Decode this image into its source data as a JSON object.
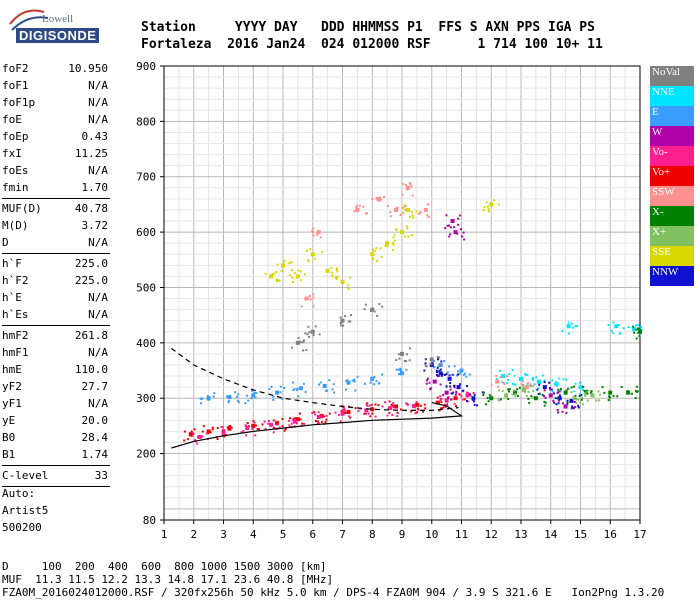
{
  "logo": {
    "top": "Lowell",
    "bottom": "DIGISONDE"
  },
  "header": {
    "line1": "Station     YYYY DAY   DDD HHMMSS P1  FFS S AXN PPS IGA PS",
    "line2": "Fortaleza  2016 Jan24  024 012000 RSF      1 714 100 10+ 11"
  },
  "params": [
    [
      {
        "name": "foF2",
        "value": "10.950"
      },
      {
        "name": "foF1",
        "value": "N/A"
      },
      {
        "name": "foF1p",
        "value": "N/A"
      },
      {
        "name": "foE",
        "value": "N/A"
      },
      {
        "name": "foEp",
        "value": "0.43"
      },
      {
        "name": "fxI",
        "value": "11.25"
      },
      {
        "name": "foEs",
        "value": "N/A"
      },
      {
        "name": "fmin",
        "value": "1.70"
      }
    ],
    [
      {
        "name": "MUF(D)",
        "value": "40.78"
      },
      {
        "name": "M(D)",
        "value": "3.72"
      },
      {
        "name": "D",
        "value": "N/A"
      }
    ],
    [
      {
        "name": "h`F",
        "value": "225.0"
      },
      {
        "name": "h`F2",
        "value": "225.0"
      },
      {
        "name": "h`E",
        "value": "N/A"
      },
      {
        "name": "h`Es",
        "value": "N/A"
      }
    ],
    [
      {
        "name": "hmF2",
        "value": "261.8"
      },
      {
        "name": "hmF1",
        "value": "N/A"
      },
      {
        "name": "hmE",
        "value": "110.0"
      },
      {
        "name": "yF2",
        "value": "27.7"
      },
      {
        "name": "yF1",
        "value": "N/A"
      },
      {
        "name": "yE",
        "value": "20.0"
      },
      {
        "name": "B0",
        "value": "28.4"
      },
      {
        "name": "B1",
        "value": "1.74"
      }
    ],
    [
      {
        "name": "C-level",
        "value": "33"
      }
    ]
  ],
  "auto": {
    "label": "Auto:",
    "artist": "Artist5",
    "version": "500200"
  },
  "legend": [
    {
      "label": "NoVal",
      "color": "#808080"
    },
    {
      "label": "NNE",
      "color": "#00e5ff"
    },
    {
      "label": "E",
      "color": "#3b9cff"
    },
    {
      "label": "W",
      "color": "#b000a8"
    },
    {
      "label": "Vo-",
      "color": "#ff2090"
    },
    {
      "label": "Vo+",
      "color": "#ee0000"
    },
    {
      "label": "SSW",
      "color": "#ff9090"
    },
    {
      "label": "X-",
      "color": "#008000"
    },
    {
      "label": "X+",
      "color": "#80c060"
    },
    {
      "label": "SSE",
      "color": "#d8d800"
    },
    {
      "label": "NNW",
      "color": "#1010d0"
    }
  ],
  "chart_data": {
    "type": "scatter",
    "title": "",
    "xlabel": "",
    "ylabel": "",
    "xlim": [
      1,
      17
    ],
    "ylim": [
      80,
      900
    ],
    "xticks": [
      1,
      2,
      3,
      4,
      5,
      6,
      7,
      8,
      9,
      10,
      11,
      12,
      13,
      14,
      15,
      16,
      17
    ],
    "yticks": [
      80,
      200,
      300,
      400,
      500,
      600,
      700,
      800,
      900
    ],
    "grid": true,
    "legend_position": "right",
    "series": [
      {
        "color": "#ee0000",
        "points": [
          [
            1.9,
            235
          ],
          [
            2.5,
            240
          ],
          [
            3.2,
            245
          ],
          [
            4.0,
            250
          ],
          [
            4.8,
            255
          ],
          [
            5.5,
            262
          ],
          [
            6.3,
            268
          ],
          [
            7.2,
            275
          ],
          [
            8.0,
            280
          ],
          [
            8.8,
            285
          ],
          [
            9.5,
            288
          ],
          [
            10.2,
            292
          ],
          [
            10.8,
            300
          ]
        ]
      },
      {
        "color": "#ff2090",
        "points": [
          [
            2.2,
            230
          ],
          [
            3.0,
            238
          ],
          [
            3.8,
            246
          ],
          [
            4.6,
            252
          ],
          [
            5.4,
            258
          ],
          [
            6.2,
            266
          ],
          [
            7.0,
            272
          ],
          [
            7.8,
            278
          ],
          [
            8.6,
            282
          ],
          [
            9.4,
            286
          ],
          [
            10.5,
            296
          ],
          [
            11.2,
            305
          ]
        ]
      },
      {
        "color": "#3b9cff",
        "points": [
          [
            2.5,
            300
          ],
          [
            3.2,
            302
          ],
          [
            4.0,
            305
          ],
          [
            4.8,
            310
          ],
          [
            5.6,
            318
          ],
          [
            6.4,
            322
          ],
          [
            7.2,
            328
          ],
          [
            8.0,
            335
          ],
          [
            9.0,
            345
          ],
          [
            10.3,
            360
          ],
          [
            11.0,
            350
          ]
        ]
      },
      {
        "color": "#00e5ff",
        "points": [
          [
            12.4,
            340
          ],
          [
            13.0,
            335
          ],
          [
            13.6,
            330
          ],
          [
            14.2,
            325
          ],
          [
            15.0,
            320
          ],
          [
            16.2,
            430
          ],
          [
            16.8,
            425
          ],
          [
            14.6,
            430
          ]
        ]
      },
      {
        "color": "#1010d0",
        "points": [
          [
            10.0,
            360
          ],
          [
            10.3,
            345
          ],
          [
            10.6,
            335
          ],
          [
            10.9,
            320
          ],
          [
            11.4,
            300
          ],
          [
            13.8,
            320
          ],
          [
            14.3,
            300
          ],
          [
            14.7,
            295
          ]
        ]
      },
      {
        "color": "#b000a8",
        "points": [
          [
            10.1,
            330
          ],
          [
            10.5,
            310
          ],
          [
            10.7,
            620
          ],
          [
            10.8,
            600
          ],
          [
            14.0,
            305
          ],
          [
            14.5,
            285
          ]
        ]
      },
      {
        "color": "#d8d800",
        "points": [
          [
            4.6,
            520
          ],
          [
            5.0,
            540
          ],
          [
            5.5,
            520
          ],
          [
            6.0,
            560
          ],
          [
            6.5,
            530
          ],
          [
            7.0,
            510
          ],
          [
            8.0,
            560
          ],
          [
            8.5,
            580
          ],
          [
            9.0,
            600
          ],
          [
            9.2,
            640
          ],
          [
            12.0,
            650
          ]
        ]
      },
      {
        "color": "#008000",
        "points": [
          [
            12.0,
            300
          ],
          [
            12.8,
            310
          ],
          [
            13.5,
            300
          ],
          [
            14.5,
            310
          ],
          [
            15.2,
            310
          ],
          [
            16.0,
            310
          ],
          [
            16.6,
            310
          ],
          [
            17.0,
            420
          ]
        ]
      },
      {
        "color": "#ff9090",
        "points": [
          [
            5.8,
            480
          ],
          [
            6.2,
            600
          ],
          [
            7.5,
            640
          ],
          [
            8.2,
            660
          ],
          [
            8.8,
            640
          ],
          [
            9.2,
            680
          ],
          [
            9.8,
            640
          ],
          [
            12.2,
            330
          ],
          [
            13.2,
            320
          ]
        ]
      },
      {
        "color": "#80c060",
        "points": [
          [
            12.5,
            305
          ],
          [
            13.1,
            315
          ],
          [
            14.8,
            300
          ],
          [
            15.4,
            305
          ]
        ]
      },
      {
        "color": "#808080",
        "points": [
          [
            5.5,
            400
          ],
          [
            6.0,
            420
          ],
          [
            7.0,
            440
          ],
          [
            8.0,
            460
          ],
          [
            9.0,
            380
          ],
          [
            10.0,
            370
          ]
        ]
      }
    ],
    "profile_lines": [
      {
        "style": "solid",
        "points": [
          [
            1.25,
            210
          ],
          [
            2.0,
            222
          ],
          [
            3.0,
            232
          ],
          [
            4.0,
            240
          ],
          [
            5.0,
            246
          ],
          [
            6.0,
            252
          ],
          [
            7.0,
            256
          ],
          [
            8.0,
            260
          ],
          [
            9.0,
            262
          ],
          [
            10.0,
            264
          ],
          [
            10.5,
            266
          ],
          [
            11.0,
            268
          ],
          [
            10.5,
            286
          ],
          [
            10.0,
            292
          ]
        ]
      },
      {
        "style": "dashed",
        "points": [
          [
            1.25,
            390
          ],
          [
            2.0,
            360
          ],
          [
            3.0,
            335
          ],
          [
            4.0,
            315
          ],
          [
            5.0,
            300
          ],
          [
            6.0,
            292
          ],
          [
            7.0,
            285
          ],
          [
            8.0,
            280
          ],
          [
            9.0,
            278
          ],
          [
            10.0,
            278
          ],
          [
            10.9,
            283
          ]
        ]
      }
    ]
  },
  "footer": {
    "d_row": "D     100  200  400  600  800 1000 1500 3000 [km]",
    "muf_row": "MUF  11.3 11.5 12.2 13.3 14.8 17.1 23.6 40.8 [MHz]",
    "file_row": "FZA0M_2016024012000.RSF / 320fx256h 50 kHz 5.0 km / DPS-4 FZA0M 904 / 3.9 S 321.6 E   Ion2Png 1.3.20"
  }
}
